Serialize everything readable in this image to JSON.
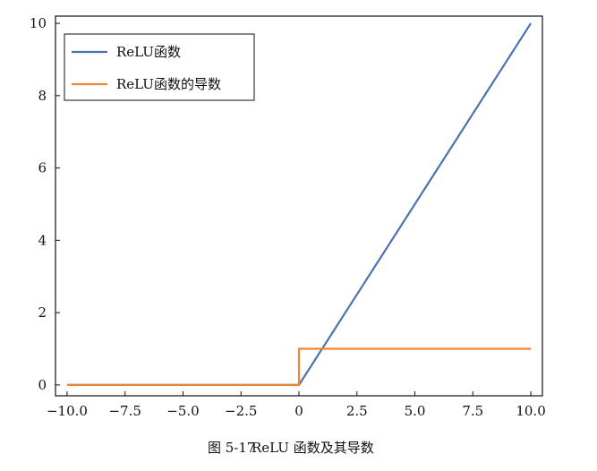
{
  "chart_data": {
    "type": "line",
    "title": "",
    "xlabel": "",
    "ylabel": "",
    "xlim": [
      -10.5,
      10.5
    ],
    "ylim": [
      -0.3,
      10.2
    ],
    "grid": false,
    "legend_position": "top-left",
    "xticks": [
      -10.0,
      -7.5,
      -5.0,
      -2.5,
      0.0,
      2.5,
      5.0,
      7.5,
      10.0
    ],
    "xtick_labels": [
      "−10.0",
      "−7.5",
      "−5.0",
      "−2.5",
      "0",
      "2.5",
      "5.0",
      "7.5",
      "10.0"
    ],
    "yticks": [
      0,
      2,
      4,
      6,
      8,
      10
    ],
    "ytick_labels": [
      "0",
      "2",
      "4",
      "6",
      "8",
      "10"
    ],
    "series": [
      {
        "name": "ReLU函数",
        "color": "#4c72b0",
        "x": [
          -10,
          0,
          10
        ],
        "y": [
          0,
          0,
          10
        ]
      },
      {
        "name": "ReLU函数的导数",
        "color": "#ee8531",
        "x": [
          -10,
          0,
          0,
          10
        ],
        "y": [
          0,
          0,
          1,
          1
        ]
      }
    ]
  },
  "caption": {
    "number": "图 5-17",
    "text": "ReLU 函数及其导数"
  }
}
